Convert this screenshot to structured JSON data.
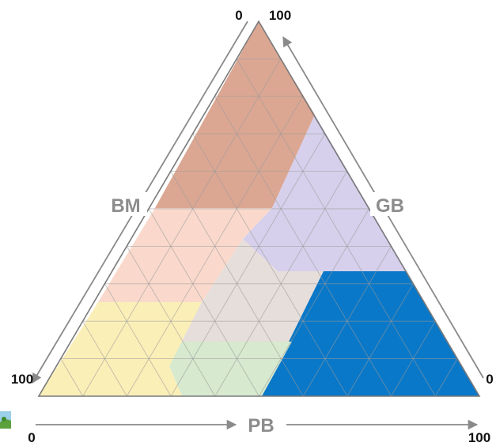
{
  "diagram": {
    "axes": {
      "bm": {
        "label": "BM",
        "start_value": "0",
        "end_value": "100"
      },
      "gb": {
        "label": "GB",
        "start_value": "0",
        "end_value": "100"
      },
      "pb": {
        "label": "PB",
        "start_value": "0",
        "end_value": "100"
      }
    },
    "colors": {
      "bm_rich_region": "#dba793",
      "gb_rich_region": "#d6d0ec",
      "pb_rich_region": "#0a78c8",
      "mixed_bm_region": "#fad9cc",
      "mixed_center_region": "#e6deda",
      "mixed_lower_region": "#d7e9cf",
      "mixed_left_region": "#fbefb8",
      "grid": "#9a9a9a",
      "arrow": "#8a8a8a",
      "outline": "#7a7a7a"
    }
  }
}
